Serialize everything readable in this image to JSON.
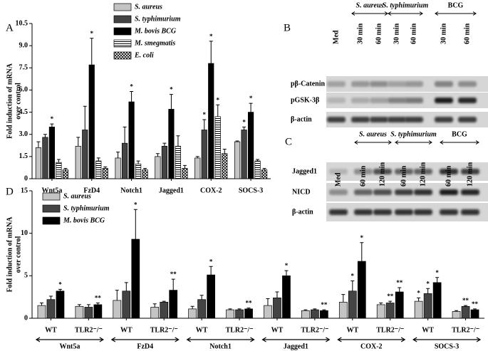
{
  "chart_data": [
    {
      "type": "bar",
      "panel_label": "A",
      "ylabel": [
        "Fold induction of mRNA",
        "over control"
      ],
      "categories": [
        "Wnt5a",
        "FzD4",
        "Notch1",
        "Jagged1",
        "COX-2",
        "SOCS-3"
      ],
      "ylim": [
        0,
        10.5
      ],
      "yticks": [
        0,
        1.5,
        {
          "value": 3,
          "label": "3.0"
        },
        4.5,
        {
          "value": 6,
          "label": "6.0"
        },
        7.5,
        {
          "value": 9,
          "label": "9.0"
        },
        10.5
      ],
      "series": [
        {
          "name": "S. aureus",
          "color": "#c4c4c4",
          "values": [
            2.1,
            2.2,
            1.4,
            1.5,
            1.4,
            2.5
          ],
          "errors": [
            0.4,
            0.6,
            0.4,
            0.2,
            0.1,
            0.05
          ]
        },
        {
          "name": "S. typhimurium",
          "color": "#444444",
          "values": [
            2.8,
            3.3,
            2.4,
            2.2,
            3.3,
            3.3
          ],
          "errors": [
            0.2,
            1.6,
            1.1,
            0.2,
            0.7,
            0.2
          ],
          "significance": [
            null,
            null,
            null,
            null,
            "*",
            "*"
          ]
        },
        {
          "name": "M. bovis BCG",
          "color": "#000000",
          "values": [
            3.5,
            7.7,
            5.2,
            4.7,
            7.8,
            4.5
          ],
          "errors": [
            0.2,
            1.8,
            0.7,
            1.0,
            1.5,
            0.6
          ],
          "significance": [
            "*",
            "*",
            "*",
            "*",
            "*",
            "*"
          ]
        },
        {
          "name": "M. smegmatis",
          "color": "#ffffff",
          "hatch": "horizontal",
          "values": [
            1.1,
            1.2,
            1.0,
            2.2,
            4.2,
            1.2
          ],
          "errors": [
            0.2,
            0.2,
            0.2,
            0.7,
            0.8,
            0.1
          ],
          "significance": [
            null,
            null,
            null,
            null,
            "*",
            null
          ]
        },
        {
          "name": "E. coli",
          "color": "#ffffff",
          "hatch": "crosshatch",
          "values": [
            0.6,
            0.7,
            0.6,
            0.7,
            1.7,
            0.6
          ],
          "errors": [
            0.1,
            0.1,
            0.1,
            0.2,
            0.3,
            0.1
          ]
        }
      ]
    },
    {
      "type": "bar",
      "panel_label": "D",
      "ylabel": [
        "Fold induction of mRNA",
        "over control"
      ],
      "categories": [
        "WT",
        "TLR2⁻/⁻",
        "WT",
        "TLR2⁻/⁻",
        "WT",
        "TLR2⁻/⁻",
        "WT",
        "TLR2⁻/⁻",
        "WT",
        "TLR2⁻/⁻",
        "WT",
        "TLR2⁻/⁻"
      ],
      "groups": [
        "Wnt5a",
        "FzD4",
        "Notch1",
        "Jagged1",
        "COX-2",
        "SOCS-3"
      ],
      "ylim": [
        0,
        15
      ],
      "yticks": [
        0,
        5,
        10,
        15
      ],
      "series": [
        {
          "name": "S. aureus",
          "color": "#c4c4c4",
          "values": [
            1.5,
            1.4,
            2.1,
            1.3,
            1.1,
            1.0,
            1.5,
            0.9,
            1.9,
            1.6,
            2.0,
            0.8
          ],
          "errors": [
            0.3,
            0.2,
            1.2,
            0.4,
            0.3,
            0.1,
            0.8,
            0.1,
            0.9,
            0.2,
            0.4,
            0.1
          ],
          "significance": [
            null,
            null,
            null,
            null,
            null,
            null,
            null,
            null,
            null,
            null,
            "*",
            null
          ]
        },
        {
          "name": "S. typhimurium",
          "color": "#444444",
          "values": [
            2.2,
            1.3,
            3.2,
            1.9,
            2.2,
            1.0,
            2.4,
            1.0,
            3.2,
            1.8,
            2.9,
            1.4
          ],
          "errors": [
            0.4,
            0.3,
            1.0,
            0.1,
            0.5,
            0.1,
            0.7,
            0.1,
            1.2,
            0.2,
            0.6,
            0.1
          ],
          "significance": [
            null,
            null,
            null,
            null,
            null,
            null,
            null,
            null,
            "*",
            "**",
            "*",
            "**"
          ]
        },
        {
          "name": "M. bovis BCG",
          "color": "#000000",
          "values": [
            3.2,
            1.6,
            9.3,
            3.3,
            5.1,
            1.1,
            5.0,
            0.9,
            6.7,
            3.1,
            4.2,
            1.0
          ],
          "errors": [
            0.2,
            0.2,
            3.5,
            1.3,
            1.0,
            0.1,
            0.6,
            0.1,
            2.2,
            0.5,
            0.6,
            0.1
          ],
          "significance": [
            "*",
            "**",
            "*",
            "**",
            "*",
            "**",
            "*",
            "**",
            "*",
            "**",
            "*",
            "**"
          ]
        }
      ]
    }
  ],
  "blots": [
    {
      "panel_label": "B",
      "lanes": [
        "Med",
        "30 min",
        "60 min",
        "30 min",
        "60 min",
        "30 min",
        "60 min"
      ],
      "groups": [
        "S. aureus",
        "S. typhimurium",
        "BCG"
      ],
      "rows": [
        "pβ-Catenin",
        "pGSK-3β",
        "β-actin"
      ]
    },
    {
      "panel_label": "C",
      "lanes": [
        "Med",
        "60 min",
        "120 min",
        "60 min",
        "120 min",
        "60 min",
        "120 min"
      ],
      "groups": [
        "S. aureus",
        "S. typhimurium",
        "BCG"
      ],
      "rows": [
        "Jagged1",
        "NICD",
        "β-actin"
      ]
    }
  ]
}
